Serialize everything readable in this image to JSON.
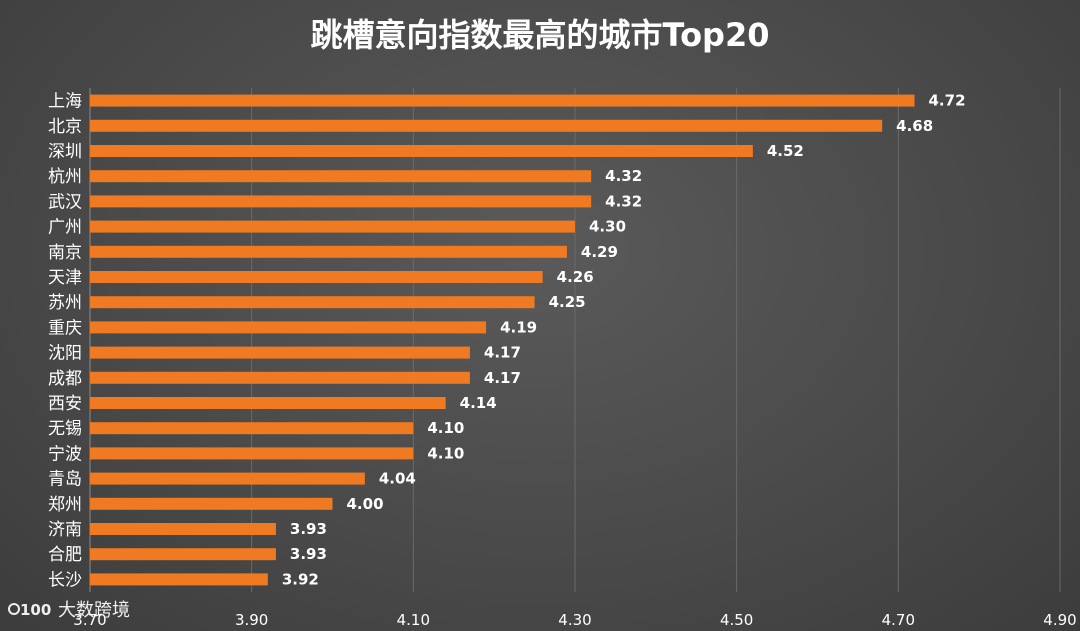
{
  "chart_data": {
    "type": "bar",
    "orientation": "horizontal",
    "title": "跳槽意向指数最高的城市Top20",
    "categories": [
      "上海",
      "北京",
      "深圳",
      "杭州",
      "武汉",
      "广州",
      "南京",
      "天津",
      "苏州",
      "重庆",
      "沈阳",
      "成都",
      "西安",
      "无锡",
      "宁波",
      "青岛",
      "郑州",
      "济南",
      "合肥",
      "长沙"
    ],
    "values": [
      4.72,
      4.68,
      4.52,
      4.32,
      4.32,
      4.3,
      4.29,
      4.26,
      4.25,
      4.19,
      4.17,
      4.17,
      4.14,
      4.1,
      4.1,
      4.04,
      4.0,
      3.93,
      3.93,
      3.92
    ],
    "value_labels": [
      "4.72",
      "4.68",
      "4.52",
      "4.32",
      "4.32",
      "4.30",
      "4.29",
      "4.26",
      "4.25",
      "4.19",
      "4.17",
      "4.17",
      "4.14",
      "4.10",
      "4.10",
      "4.04",
      "4.00",
      "3.93",
      "3.93",
      "3.92"
    ],
    "xlim": [
      3.7,
      4.9
    ],
    "xticks": [
      3.7,
      3.9,
      4.1,
      4.3,
      4.5,
      4.7,
      4.9
    ],
    "xtick_labels": [
      "3.70",
      "3.90",
      "4.10",
      "4.30",
      "4.50",
      "4.70",
      "4.90"
    ],
    "grid": true,
    "bar_color": "#f07a22",
    "xlabel": "",
    "ylabel": ""
  },
  "watermark": {
    "logo_text": "100",
    "text": "大数跨境"
  }
}
